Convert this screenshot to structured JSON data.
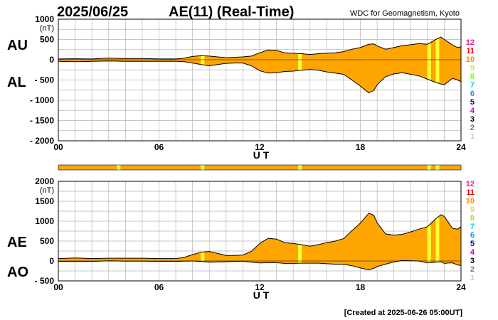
{
  "header": {
    "date": "2025/06/25",
    "title": "AE(11) (Real-Time)",
    "source": "WDC for Geomagnetism, Kyoto"
  },
  "footer": {
    "created": "[Created at 2025-06-26 05:00UT]"
  },
  "colors": {
    "fill": "#ffa500",
    "highlight": "#ffff33",
    "grid": "#b4b4b4",
    "line": "#000000"
  },
  "station_legend": [
    {
      "label": "12",
      "color": "#ff1493"
    },
    {
      "label": "11",
      "color": "#ff0000"
    },
    {
      "label": "10",
      "color": "#ff8c00"
    },
    {
      "label": "9",
      "color": "#e6e600"
    },
    {
      "label": "8",
      "color": "#7cfc00"
    },
    {
      "label": "7",
      "color": "#00ced1"
    },
    {
      "label": "6",
      "color": "#1e90ff"
    },
    {
      "label": "5",
      "color": "#0000cd"
    },
    {
      "label": "4",
      "color": "#cc00cc"
    },
    {
      "label": "3",
      "color": "#000000"
    },
    {
      "label": "2",
      "color": "#777777"
    },
    {
      "label": "1",
      "color": "#cccccc"
    }
  ],
  "chart_data": [
    {
      "type": "area",
      "panel": "AU/AL",
      "upper_label": "AU",
      "lower_label": "AL",
      "unit": "(nT)",
      "xlabel": "U T",
      "xlim": [
        0,
        24
      ],
      "ylim": [
        -2000,
        1000
      ],
      "x_ticks": [
        0,
        6,
        12,
        18,
        24
      ],
      "x_tick_labels": [
        "00",
        "06",
        "12",
        "18",
        "24"
      ],
      "y_ticks": [
        1000,
        500,
        0,
        -500,
        -1000,
        -1500,
        -2000
      ],
      "y_tick_labels": [
        "1000",
        "500",
        "0",
        "- 500",
        "- 1000",
        "- 1500",
        "- 2000"
      ],
      "gridlines": true,
      "highlight_hours": [
        8.6,
        14.4,
        22.1,
        22.6
      ],
      "x": [
        0,
        1,
        2,
        3,
        4,
        5,
        6,
        7,
        7.5,
        8,
        8.5,
        9,
        9.5,
        10,
        10.5,
        11,
        11.5,
        12,
        12.5,
        13,
        13.5,
        14,
        14.5,
        15,
        15.5,
        16,
        16.5,
        17,
        17.5,
        18,
        18.5,
        18.8,
        19,
        19.5,
        20,
        20.5,
        21,
        21.5,
        22,
        22.5,
        22.8,
        23,
        23.3,
        23.5,
        23.8,
        24
      ],
      "series": [
        {
          "name": "AU",
          "values": [
            20,
            25,
            20,
            40,
            30,
            30,
            20,
            20,
            40,
            80,
            100,
            90,
            70,
            50,
            60,
            70,
            90,
            170,
            240,
            230,
            170,
            160,
            150,
            130,
            150,
            160,
            170,
            200,
            260,
            300,
            380,
            390,
            340,
            260,
            300,
            350,
            370,
            400,
            380,
            500,
            560,
            500,
            420,
            360,
            300,
            320
          ]
        },
        {
          "name": "AL",
          "values": [
            -40,
            -50,
            -40,
            -30,
            -40,
            -40,
            -40,
            -40,
            -50,
            -80,
            -120,
            -150,
            -120,
            -90,
            -80,
            -80,
            -150,
            -270,
            -330,
            -320,
            -290,
            -280,
            -260,
            -240,
            -260,
            -300,
            -330,
            -360,
            -500,
            -650,
            -820,
            -760,
            -620,
            -420,
            -350,
            -320,
            -360,
            -400,
            -480,
            -560,
            -600,
            -620,
            -520,
            -460,
            -500,
            -540
          ]
        }
      ]
    },
    {
      "type": "area",
      "panel": "AE/AO",
      "upper_label": "AE",
      "lower_label": "AO",
      "unit": "(nT)",
      "xlabel": "U T",
      "xlim": [
        0,
        24
      ],
      "ylim": [
        -500,
        2000
      ],
      "x_ticks": [
        0,
        6,
        12,
        18,
        24
      ],
      "x_tick_labels": [
        "00",
        "06",
        "12",
        "18",
        "24"
      ],
      "y_ticks": [
        2000,
        1500,
        1000,
        500,
        0,
        -500
      ],
      "y_tick_labels": [
        "2000",
        "1500",
        "1000",
        "500",
        "0",
        "- 500"
      ],
      "gridlines": true,
      "highlight_hours": [
        8.6,
        14.4,
        22.1,
        22.6
      ],
      "x": [
        0,
        1,
        2,
        3,
        4,
        5,
        6,
        7,
        7.5,
        8,
        8.5,
        9,
        9.5,
        10,
        10.5,
        11,
        11.5,
        12,
        12.5,
        13,
        13.5,
        14,
        14.5,
        15,
        15.5,
        16,
        16.5,
        17,
        17.5,
        18,
        18.5,
        18.8,
        19,
        19.5,
        20,
        20.5,
        21,
        21.5,
        22,
        22.5,
        22.8,
        23,
        23.3,
        23.5,
        23.8,
        24
      ],
      "series": [
        {
          "name": "AE",
          "values": [
            60,
            75,
            60,
            70,
            70,
            70,
            60,
            60,
            90,
            160,
            220,
            240,
            190,
            140,
            140,
            150,
            240,
            440,
            570,
            550,
            460,
            440,
            410,
            370,
            410,
            460,
            500,
            560,
            760,
            950,
            1200,
            1150,
            960,
            680,
            650,
            670,
            730,
            800,
            860,
            1060,
            1160,
            1120,
            940,
            820,
            800,
            860
          ]
        },
        {
          "name": "AO",
          "values": [
            -10,
            -12,
            -10,
            5,
            -5,
            -5,
            -10,
            -10,
            -5,
            0,
            -10,
            -30,
            -25,
            -20,
            -10,
            -5,
            -30,
            -50,
            -45,
            -45,
            -60,
            -60,
            -55,
            -55,
            -55,
            -70,
            -80,
            -80,
            -120,
            -175,
            -220,
            -185,
            -140,
            -80,
            -25,
            15,
            5,
            0,
            -50,
            -30,
            -20,
            -60,
            -50,
            -50,
            -100,
            -110
          ]
        }
      ]
    }
  ]
}
